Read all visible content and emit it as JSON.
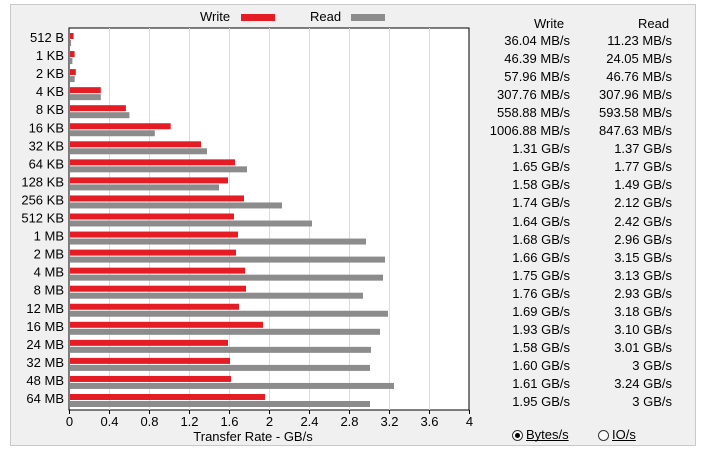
{
  "chart_data": {
    "type": "bar",
    "orientation": "horizontal",
    "categories": [
      "512 B",
      "1 KB",
      "2 KB",
      "4 KB",
      "8 KB",
      "16 KB",
      "32 KB",
      "64 KB",
      "128 KB",
      "256 KB",
      "512 KB",
      "1 MB",
      "2 MB",
      "4 MB",
      "8 MB",
      "12 MB",
      "16 MB",
      "24 MB",
      "32 MB",
      "48 MB",
      "64 MB"
    ],
    "series": [
      {
        "name": "Write",
        "color": "#e51c23",
        "values": [
          0.036,
          0.046,
          0.058,
          0.308,
          0.559,
          1.007,
          1.31,
          1.65,
          1.58,
          1.74,
          1.64,
          1.68,
          1.66,
          1.75,
          1.76,
          1.69,
          1.93,
          1.58,
          1.6,
          1.61,
          1.95
        ]
      },
      {
        "name": "Read",
        "color": "#8c8c8c",
        "values": [
          0.011,
          0.024,
          0.047,
          0.308,
          0.594,
          0.848,
          1.37,
          1.77,
          1.49,
          2.12,
          2.42,
          2.96,
          3.15,
          3.13,
          2.93,
          3.18,
          3.1,
          3.01,
          3.0,
          3.24,
          3.0
        ]
      }
    ],
    "xlabel": "Transfer Rate - GB/s",
    "xlim": [
      0,
      4
    ],
    "xticks": [
      "0",
      "0.4",
      "0.8",
      "1.2",
      "1.6",
      "2",
      "2.4",
      "2.8",
      "3.2",
      "3.6",
      "4"
    ],
    "grid": true,
    "legend": "top"
  },
  "table": {
    "write_header": "Write",
    "read_header": "Read",
    "write_values": [
      "36.04 MB/s",
      "46.39 MB/s",
      "57.96 MB/s",
      "307.76 MB/s",
      "558.88 MB/s",
      "1006.88 MB/s",
      "1.31 GB/s",
      "1.65 GB/s",
      "1.58 GB/s",
      "1.74 GB/s",
      "1.64 GB/s",
      "1.68 GB/s",
      "1.66 GB/s",
      "1.75 GB/s",
      "1.76 GB/s",
      "1.69 GB/s",
      "1.93 GB/s",
      "1.58 GB/s",
      "1.60 GB/s",
      "1.61 GB/s",
      "1.95 GB/s"
    ],
    "read_values": [
      "11.23 MB/s",
      "24.05 MB/s",
      "46.76 MB/s",
      "307.96 MB/s",
      "593.58 MB/s",
      "847.63 MB/s",
      "1.37 GB/s",
      "1.77 GB/s",
      "1.49 GB/s",
      "2.12 GB/s",
      "2.42 GB/s",
      "2.96 GB/s",
      "3.15 GB/s",
      "3.13 GB/s",
      "2.93 GB/s",
      "3.18 GB/s",
      "3.10 GB/s",
      "3.01 GB/s",
      "3 GB/s",
      "3.24 GB/s",
      "3 GB/s"
    ]
  },
  "units": {
    "bytes_label": "Bytes/s",
    "io_label": "IO/s",
    "selected": "bytes"
  }
}
